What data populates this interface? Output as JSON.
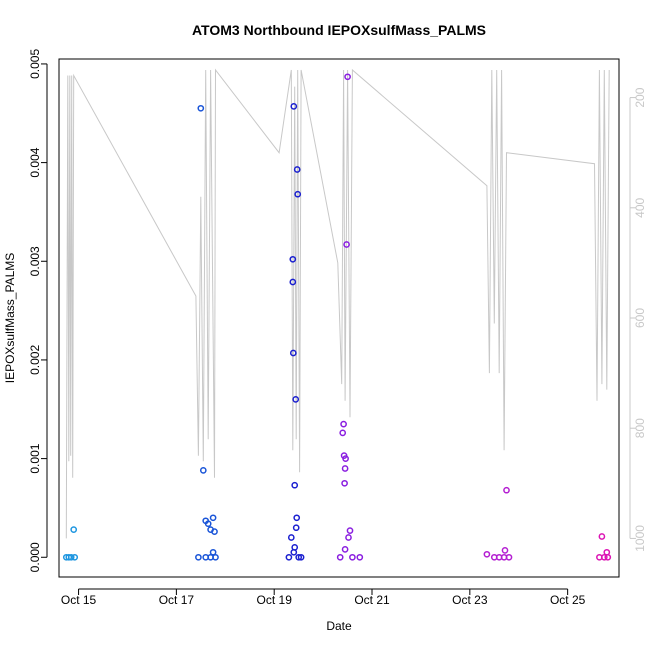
{
  "chart_data": {
    "type": "scatter",
    "title": "ATOM3 Northbound IEPOXsulfMass_PALMS",
    "xlabel": "Date",
    "ylabel": "IEPOXsulfMass_PALMS",
    "x_tick_labels": [
      "Oct 15",
      "Oct 17",
      "Oct 19",
      "Oct 21",
      "Oct 23",
      "Oct 25"
    ],
    "x_tick_days": [
      15,
      17,
      19,
      21,
      23,
      25
    ],
    "xlim": [
      14.6,
      26.05
    ],
    "y_tick_labels": [
      "0.000",
      "0.001",
      "0.002",
      "0.003",
      "0.004",
      "0.005"
    ],
    "y_ticks": [
      0,
      0.001,
      0.002,
      0.003,
      0.004,
      0.005
    ],
    "ylim": [
      -0.0002,
      0.00505
    ],
    "y2_tick_labels": [
      "200",
      "400",
      "600",
      "800",
      "1000"
    ],
    "y2_ticks": [
      200,
      400,
      600,
      800,
      1000
    ],
    "y2lim": [
      1070,
      130
    ],
    "y2_color": "#c8c8c8",
    "grid": false,
    "series": [
      {
        "color": "#1e96e0",
        "points": [
          [
            14.75,
            0
          ],
          [
            14.8,
            0
          ],
          [
            14.85,
            0
          ],
          [
            14.9,
            0.00028
          ],
          [
            14.92,
            0
          ]
        ]
      },
      {
        "color": "#1a55d8",
        "points": [
          [
            17.45,
            0
          ],
          [
            17.5,
            0.00455
          ],
          [
            17.55,
            0.00088
          ],
          [
            17.6,
            0.00037
          ],
          [
            17.65,
            0.00034
          ],
          [
            17.7,
            0.00028
          ],
          [
            17.75,
            0.0004
          ],
          [
            17.78,
            0.00026
          ],
          [
            17.8,
            0
          ],
          [
            17.6,
            0
          ],
          [
            17.7,
            0
          ],
          [
            17.75,
            5e-05
          ]
        ]
      },
      {
        "color": "#1a1fd0",
        "points": [
          [
            19.35,
            0.0002
          ],
          [
            19.38,
            0.00302
          ],
          [
            19.38,
            0.00279
          ],
          [
            19.39,
            0.00207
          ],
          [
            19.4,
            0.00457
          ],
          [
            19.42,
            0.00073
          ],
          [
            19.44,
            0.0016
          ],
          [
            19.46,
            0.0004
          ],
          [
            19.47,
            0.00393
          ],
          [
            19.48,
            0.00368
          ],
          [
            19.45,
            0.0003
          ],
          [
            19.42,
            0.0001
          ],
          [
            19.4,
            5e-05
          ],
          [
            19.5,
            0
          ],
          [
            19.3,
            0
          ],
          [
            19.55,
            0
          ]
        ]
      },
      {
        "color": "#8a1ee0",
        "points": [
          [
            20.4,
            0.00126
          ],
          [
            20.42,
            0.00135
          ],
          [
            20.43,
            0.00103
          ],
          [
            20.45,
            0.0009
          ],
          [
            20.46,
            0.001
          ],
          [
            20.44,
            0.00075
          ],
          [
            20.48,
            0.00317
          ],
          [
            20.5,
            0.00487
          ],
          [
            20.55,
            0.00027
          ],
          [
            20.52,
            0.0002
          ],
          [
            20.45,
            8e-05
          ],
          [
            20.35,
            0
          ],
          [
            20.6,
            0
          ],
          [
            20.75,
            0
          ]
        ]
      },
      {
        "color": "#b41ed2",
        "points": [
          [
            23.35,
            3e-05
          ],
          [
            23.5,
            0
          ],
          [
            23.6,
            0
          ],
          [
            23.72,
            7e-05
          ],
          [
            23.75,
            0.00068
          ],
          [
            23.7,
            0
          ],
          [
            23.8,
            0
          ]
        ]
      },
      {
        "color": "#dc14b4",
        "points": [
          [
            25.65,
            0
          ],
          [
            25.7,
            0.00021
          ],
          [
            25.75,
            0
          ],
          [
            25.8,
            5e-05
          ],
          [
            25.82,
            0
          ]
        ]
      }
    ],
    "secondary_line": {
      "color": "#c8c8c8",
      "points": [
        [
          14.75,
          1000
        ],
        [
          14.78,
          160
        ],
        [
          14.8,
          860
        ],
        [
          14.82,
          160
        ],
        [
          14.84,
          850
        ],
        [
          14.86,
          160
        ],
        [
          14.88,
          890
        ],
        [
          14.9,
          160
        ],
        [
          17.4,
          560
        ],
        [
          17.45,
          850
        ],
        [
          17.5,
          380
        ],
        [
          17.55,
          860
        ],
        [
          17.6,
          150
        ],
        [
          17.65,
          820
        ],
        [
          17.7,
          150
        ],
        [
          17.78,
          890
        ],
        [
          17.8,
          150
        ],
        [
          19.1,
          300
        ],
        [
          19.35,
          150
        ],
        [
          19.38,
          840
        ],
        [
          19.42,
          180
        ],
        [
          19.45,
          820
        ],
        [
          19.48,
          150
        ],
        [
          19.52,
          880
        ],
        [
          19.55,
          150
        ],
        [
          20.3,
          500
        ],
        [
          20.38,
          720
        ],
        [
          20.42,
          150
        ],
        [
          20.45,
          750
        ],
        [
          20.5,
          150
        ],
        [
          20.55,
          780
        ],
        [
          20.6,
          150
        ],
        [
          23.35,
          360
        ],
        [
          23.4,
          700
        ],
        [
          23.45,
          150
        ],
        [
          23.5,
          610
        ],
        [
          23.55,
          150
        ],
        [
          23.6,
          700
        ],
        [
          23.65,
          150
        ],
        [
          23.7,
          840
        ],
        [
          23.75,
          300
        ],
        [
          25.55,
          320
        ],
        [
          25.6,
          750
        ],
        [
          25.65,
          150
        ],
        [
          25.7,
          720
        ],
        [
          25.75,
          150
        ],
        [
          25.8,
          730
        ],
        [
          25.85,
          150
        ]
      ]
    }
  }
}
